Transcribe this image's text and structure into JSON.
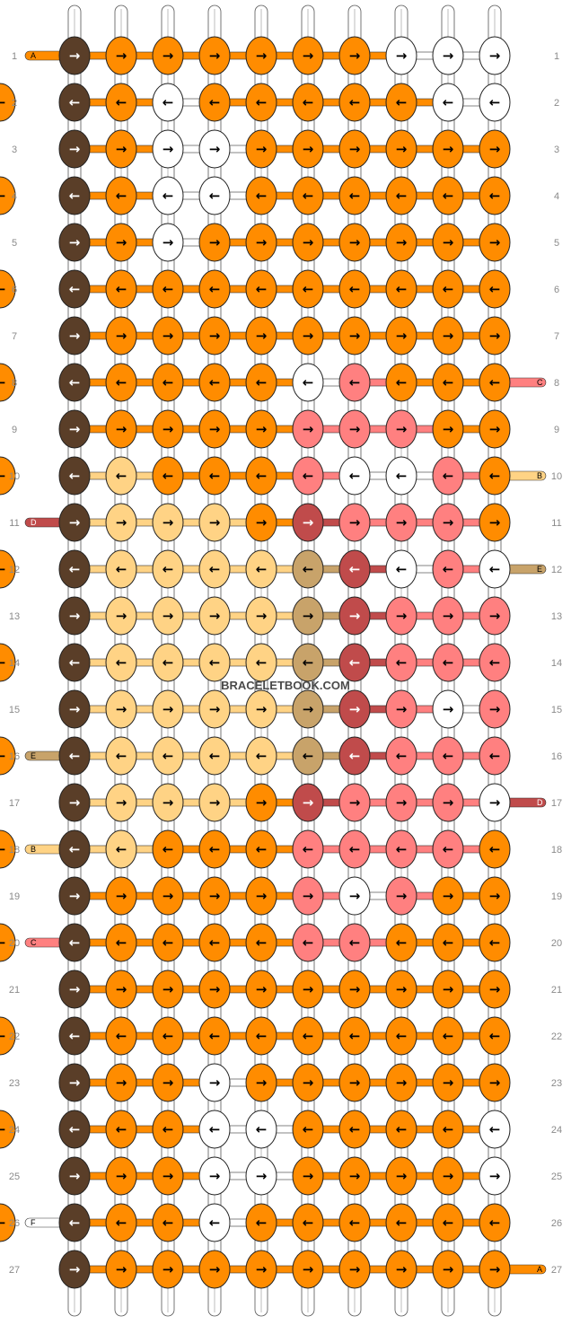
{
  "watermark": "BRACELETBOOK.COM",
  "colors": {
    "A": "#ff8c00",
    "B": "#ffd385",
    "C": "#ff8080",
    "D": "#c04b4b",
    "E": "#c8a36a",
    "F": "#ffffff",
    "G": "#5a3e28"
  },
  "left_labels": [
    "A",
    "",
    "",
    "",
    "",
    "",
    "",
    "",
    "",
    "",
    "D",
    "",
    "",
    "",
    "",
    "E",
    "",
    "B",
    "",
    "C",
    "",
    "",
    "",
    "",
    "",
    "F",
    ""
  ],
  "right_labels": [
    "",
    "",
    "",
    "",
    "",
    "",
    "",
    "C",
    "",
    "B",
    "",
    "E",
    "",
    "",
    "",
    "",
    "D",
    "",
    "",
    "",
    "",
    "",
    "",
    "",
    "",
    "",
    "A"
  ],
  "rows": [
    [
      "R",
      "AR",
      "AR",
      "AR",
      "AR",
      "AR",
      "AR",
      "FR",
      "FR",
      "FR"
    ],
    [
      "L",
      "AL",
      "FL",
      "AL",
      "AL",
      "AL",
      "AL",
      "AL",
      "FL",
      "FL",
      "AL"
    ],
    [
      "R",
      "AR",
      "FR",
      "FR",
      "AR",
      "AR",
      "AR",
      "AR",
      "AR",
      "AR"
    ],
    [
      "L",
      "AL",
      "FL",
      "FL",
      "AL",
      "AL",
      "AL",
      "AL",
      "AL",
      "AL",
      "AL"
    ],
    [
      "R",
      "AR",
      "FR",
      "AR",
      "AR",
      "AR",
      "AR",
      "AR",
      "AR",
      "AR"
    ],
    [
      "L",
      "AL",
      "AL",
      "AL",
      "AL",
      "AL",
      "AL",
      "AL",
      "AL",
      "AL",
      "AL"
    ],
    [
      "R",
      "AR",
      "AR",
      "AR",
      "AR",
      "AR",
      "AR",
      "AR",
      "AR",
      "AR"
    ],
    [
      "L",
      "AL",
      "AL",
      "AL",
      "AL",
      "FL",
      "CL",
      "AL",
      "AL",
      "AL",
      "AL"
    ],
    [
      "R",
      "AR",
      "AR",
      "AR",
      "AR",
      "CR",
      "CR",
      "CR",
      "AR",
      "AR"
    ],
    [
      "L",
      "BL",
      "AL",
      "AL",
      "AL",
      "CL",
      "FL",
      "FL",
      "CL",
      "AL",
      "AL"
    ],
    [
      "R",
      "BR",
      "BR",
      "BR",
      "AR",
      "DR",
      "CR",
      "CR",
      "CR",
      "AR"
    ],
    [
      "L",
      "BL",
      "BL",
      "BL",
      "BL",
      "EL",
      "DL",
      "FL",
      "CL",
      "FL",
      "AL"
    ],
    [
      "R",
      "BR",
      "BR",
      "BR",
      "BR",
      "ER",
      "DR",
      "CR",
      "CR",
      "CR"
    ],
    [
      "L",
      "BL",
      "BL",
      "BL",
      "BL",
      "EL",
      "DL",
      "CL",
      "CL",
      "CL",
      "AL"
    ],
    [
      "R",
      "BR",
      "BR",
      "BR",
      "BR",
      "ER",
      "DR",
      "CR",
      "FR",
      "CR"
    ],
    [
      "L",
      "BL",
      "BL",
      "BL",
      "BL",
      "EL",
      "DL",
      "CL",
      "CL",
      "CL",
      "AL"
    ],
    [
      "R",
      "BR",
      "BR",
      "BR",
      "AR",
      "DR",
      "CR",
      "CR",
      "CR",
      "FR"
    ],
    [
      "L",
      "BL",
      "AL",
      "AL",
      "AL",
      "CL",
      "CL",
      "CL",
      "CL",
      "AL",
      "AL"
    ],
    [
      "R",
      "AR",
      "AR",
      "AR",
      "AR",
      "CR",
      "FR",
      "CR",
      "AR",
      "AR"
    ],
    [
      "L",
      "AL",
      "AL",
      "AL",
      "AL",
      "CL",
      "CL",
      "AL",
      "AL",
      "AL",
      "AL"
    ],
    [
      "R",
      "AR",
      "AR",
      "AR",
      "AR",
      "AR",
      "AR",
      "AR",
      "AR",
      "AR"
    ],
    [
      "L",
      "AL",
      "AL",
      "AL",
      "AL",
      "AL",
      "AL",
      "AL",
      "AL",
      "AL",
      "AL"
    ],
    [
      "R",
      "AR",
      "AR",
      "FR",
      "AR",
      "AR",
      "AR",
      "AR",
      "AR",
      "AR"
    ],
    [
      "L",
      "AL",
      "AL",
      "FL",
      "FL",
      "AL",
      "AL",
      "AL",
      "AL",
      "FL",
      "AL"
    ],
    [
      "R",
      "AR",
      "AR",
      "FR",
      "FR",
      "AR",
      "AR",
      "AR",
      "AR",
      "FR"
    ],
    [
      "L",
      "AL",
      "AL",
      "FL",
      "AL",
      "AL",
      "AL",
      "AL",
      "AL",
      "AL",
      "AL"
    ],
    [
      "R",
      "AR",
      "AR",
      "AR",
      "AR",
      "AR",
      "AR",
      "AR",
      "AR",
      "AR"
    ]
  ]
}
